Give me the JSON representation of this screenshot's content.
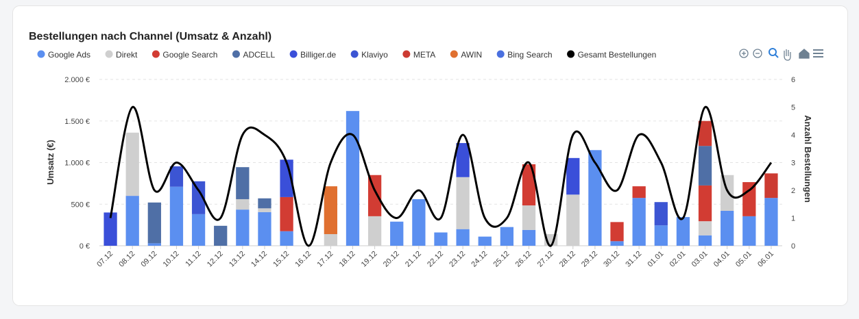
{
  "chart_data": {
    "type": "stacked-bar-line",
    "title": "Bestellungen nach Channel (Umsatz & Anzahl)",
    "y_label": "Umsatz (€)",
    "y2_label": "Anzahl Bestellungen",
    "categories": [
      "07.12",
      "08.12",
      "09.12",
      "10.12",
      "11.12",
      "12.12",
      "13.12",
      "14.12",
      "15.12",
      "16.12",
      "17.12",
      "18.12",
      "19.12",
      "20.12",
      "21.12",
      "22.12",
      "23.12",
      "24.12",
      "25.12",
      "26.12",
      "27.12",
      "28.12",
      "29.12",
      "30.12",
      "31.12",
      "01.01",
      "02.01",
      "03.01",
      "04.01",
      "05.01",
      "06.01"
    ],
    "ylim": [
      0,
      2000
    ],
    "yticks": [
      {
        "value": 0,
        "label": "0 €"
      },
      {
        "value": 500,
        "label": "500 €"
      },
      {
        "value": 1000,
        "label": "1.000 €"
      },
      {
        "value": 1500,
        "label": "1.500 €"
      },
      {
        "value": 2000,
        "label": "2.000 €"
      }
    ],
    "y2lim": [
      0,
      6
    ],
    "y2ticks": [
      0,
      1,
      2,
      3,
      4,
      5,
      6
    ],
    "grid": true,
    "legend": "top-left",
    "series": [
      {
        "name": "Google Ads",
        "color": "#5b8ff0",
        "values": [
          0,
          600,
          30,
          710,
          380,
          0,
          435,
          405,
          175,
          0,
          0,
          1620,
          0,
          290,
          560,
          160,
          200,
          110,
          225,
          190,
          0,
          0,
          1150,
          55,
          575,
          245,
          345,
          125,
          420,
          355,
          575
        ]
      },
      {
        "name": "Direkt",
        "color": "#cfcfcf",
        "values": [
          0,
          760,
          0,
          0,
          0,
          0,
          125,
          45,
          0,
          0,
          140,
          0,
          355,
          0,
          0,
          0,
          625,
          0,
          0,
          295,
          140,
          615,
          0,
          0,
          0,
          0,
          0,
          170,
          430,
          0,
          0
        ]
      },
      {
        "name": "Google Search",
        "color": "#d23c33",
        "values": [
          0,
          0,
          0,
          0,
          0,
          0,
          0,
          0,
          410,
          0,
          0,
          0,
          495,
          0,
          0,
          0,
          0,
          0,
          0,
          495,
          0,
          0,
          0,
          230,
          140,
          0,
          0,
          430,
          0,
          410,
          0
        ]
      },
      {
        "name": "ADCELL",
        "color": "#4f6fa6",
        "values": [
          0,
          0,
          490,
          0,
          0,
          240,
          385,
          120,
          0,
          0,
          0,
          0,
          0,
          0,
          0,
          0,
          0,
          0,
          0,
          0,
          0,
          0,
          0,
          0,
          0,
          0,
          0,
          475,
          0,
          0,
          0
        ]
      },
      {
        "name": "Billiger.de",
        "color": "#3a4fd9",
        "values": [
          400,
          0,
          0,
          0,
          0,
          0,
          0,
          0,
          450,
          0,
          0,
          0,
          0,
          0,
          0,
          0,
          410,
          0,
          0,
          0,
          0,
          440,
          0,
          0,
          0,
          0,
          0,
          0,
          0,
          0,
          0
        ]
      },
      {
        "name": "Klaviyo",
        "color": "#3c55d3",
        "values": [
          0,
          0,
          0,
          245,
          395,
          0,
          0,
          0,
          0,
          0,
          0,
          0,
          0,
          0,
          0,
          0,
          0,
          0,
          0,
          0,
          0,
          0,
          0,
          0,
          0,
          280,
          0,
          0,
          0,
          0,
          0
        ]
      },
      {
        "name": "META",
        "color": "#cc3b32",
        "values": [
          0,
          0,
          0,
          0,
          0,
          0,
          0,
          0,
          0,
          0,
          0,
          0,
          0,
          0,
          0,
          0,
          0,
          0,
          0,
          0,
          0,
          0,
          0,
          0,
          0,
          0,
          0,
          300,
          0,
          0,
          295
        ]
      },
      {
        "name": "AWIN",
        "color": "#e07030",
        "values": [
          0,
          0,
          0,
          0,
          0,
          0,
          0,
          0,
          0,
          0,
          575,
          0,
          0,
          0,
          0,
          0,
          0,
          0,
          0,
          0,
          0,
          0,
          0,
          0,
          0,
          0,
          0,
          0,
          0,
          0,
          0
        ]
      },
      {
        "name": "Bing Search",
        "color": "#4a70df",
        "values": [
          0,
          0,
          0,
          0,
          0,
          0,
          0,
          0,
          0,
          0,
          0,
          0,
          0,
          0,
          0,
          0,
          0,
          0,
          0,
          0,
          0,
          0,
          0,
          0,
          0,
          0,
          0,
          0,
          0,
          0,
          0
        ]
      },
      {
        "name": "Gesamt Bestellungen",
        "color": "#000000",
        "axis": "y2",
        "values": [
          1,
          5,
          2,
          3,
          2,
          1,
          4,
          4,
          3,
          0,
          3,
          4,
          2,
          1,
          2,
          1,
          4,
          1,
          1,
          3,
          0,
          4,
          3,
          2,
          4,
          3,
          1,
          5,
          2,
          2,
          3
        ]
      }
    ]
  }
}
